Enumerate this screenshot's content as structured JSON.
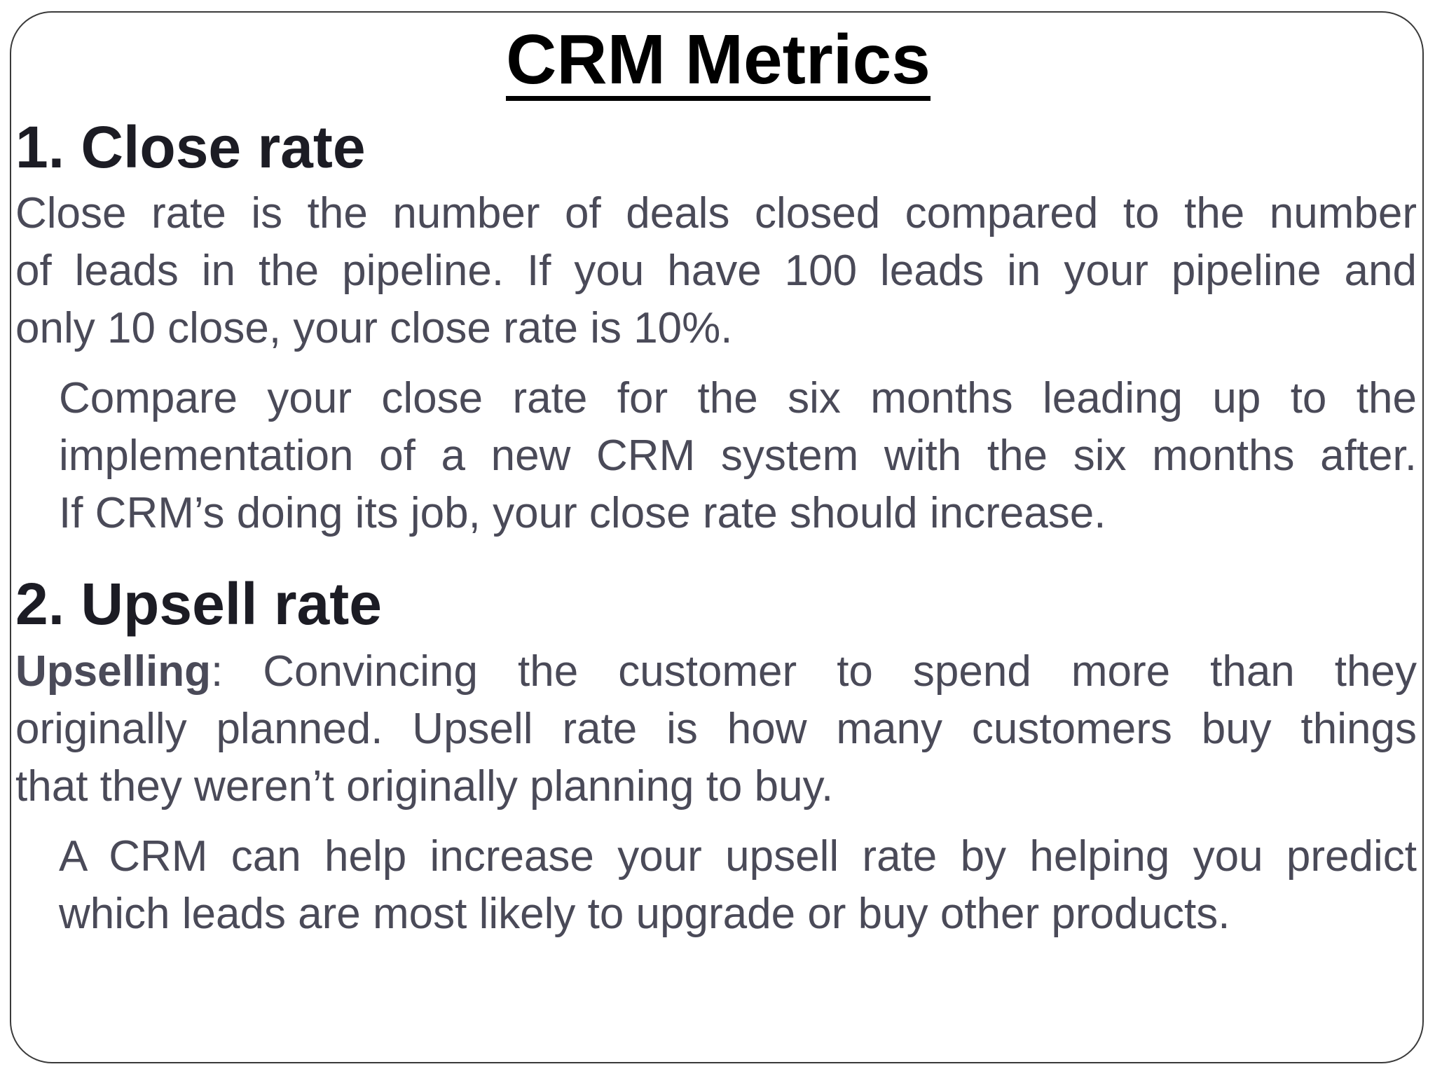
{
  "title": "CRM Metrics",
  "sections": [
    {
      "heading": "1. Close rate",
      "definition_lines": [
        "Close rate is the number of deals closed compared to the number",
        "of leads in the pipeline. If you have 100 leads in your pipeline and",
        "only 10 close, your close rate is 10%."
      ],
      "detail_lines": [
        "Compare your close rate for the six months leading up to the",
        "implementation of a new CRM system with the six months after.",
        "If  CRM’s doing its job, your close rate should increase."
      ]
    },
    {
      "heading": "2. Upsell rate",
      "term": "Upselling",
      "definition_lines": [
        ": Convincing the customer to spend more than they",
        "originally planned. Upsell rate is how many customers buy things",
        "that they weren’t originally planning to buy."
      ],
      "detail_lines": [
        "A CRM can help increase your upsell rate by helping you predict",
        "which leads are most likely to upgrade or buy other products."
      ]
    }
  ]
}
